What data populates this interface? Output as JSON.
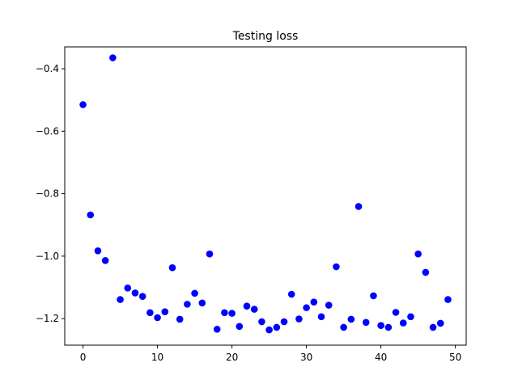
{
  "chart_data": {
    "type": "scatter",
    "title": "Testing loss",
    "xlabel": "",
    "ylabel": "",
    "xlim": [
      -2.45,
      51.45
    ],
    "ylim": [
      -1.285,
      -0.33
    ],
    "xticks": [
      0,
      10,
      20,
      30,
      40,
      50
    ],
    "yticks": [
      -1.2,
      -1.0,
      -0.8,
      -0.6,
      -0.4
    ],
    "ytick_labels": [
      "−1.2",
      "−1.0",
      "−0.8",
      "−0.6",
      "−0.4"
    ],
    "grid": false,
    "marker_color": "#0000ff",
    "series": [
      {
        "x": [
          0,
          1,
          2,
          3,
          4,
          5,
          6,
          7,
          8,
          9,
          10,
          11,
          12,
          13,
          14,
          15,
          16,
          17,
          18,
          19,
          20,
          21,
          22,
          23,
          24,
          25,
          26,
          27,
          28,
          29,
          30,
          31,
          32,
          33,
          34,
          35,
          36,
          37,
          38,
          39,
          40,
          41,
          42,
          43,
          44,
          45,
          46,
          47,
          48,
          49
        ],
        "y": [
          -0.515,
          -0.868,
          -0.983,
          -1.014,
          -0.365,
          -1.139,
          -1.102,
          -1.118,
          -1.129,
          -1.181,
          -1.197,
          -1.178,
          -1.037,
          -1.202,
          -1.154,
          -1.119,
          -1.15,
          -0.993,
          -1.234,
          -1.181,
          -1.183,
          -1.225,
          -1.16,
          -1.17,
          -1.21,
          -1.236,
          -1.228,
          -1.21,
          -1.122,
          -1.201,
          -1.165,
          -1.147,
          -1.194,
          -1.157,
          -1.034,
          -1.228,
          -1.202,
          -0.841,
          -1.212,
          -1.127,
          -1.222,
          -1.228,
          -1.18,
          -1.214,
          -1.194,
          -0.993,
          -1.052,
          -1.228,
          -1.215,
          -1.139
        ]
      }
    ]
  }
}
